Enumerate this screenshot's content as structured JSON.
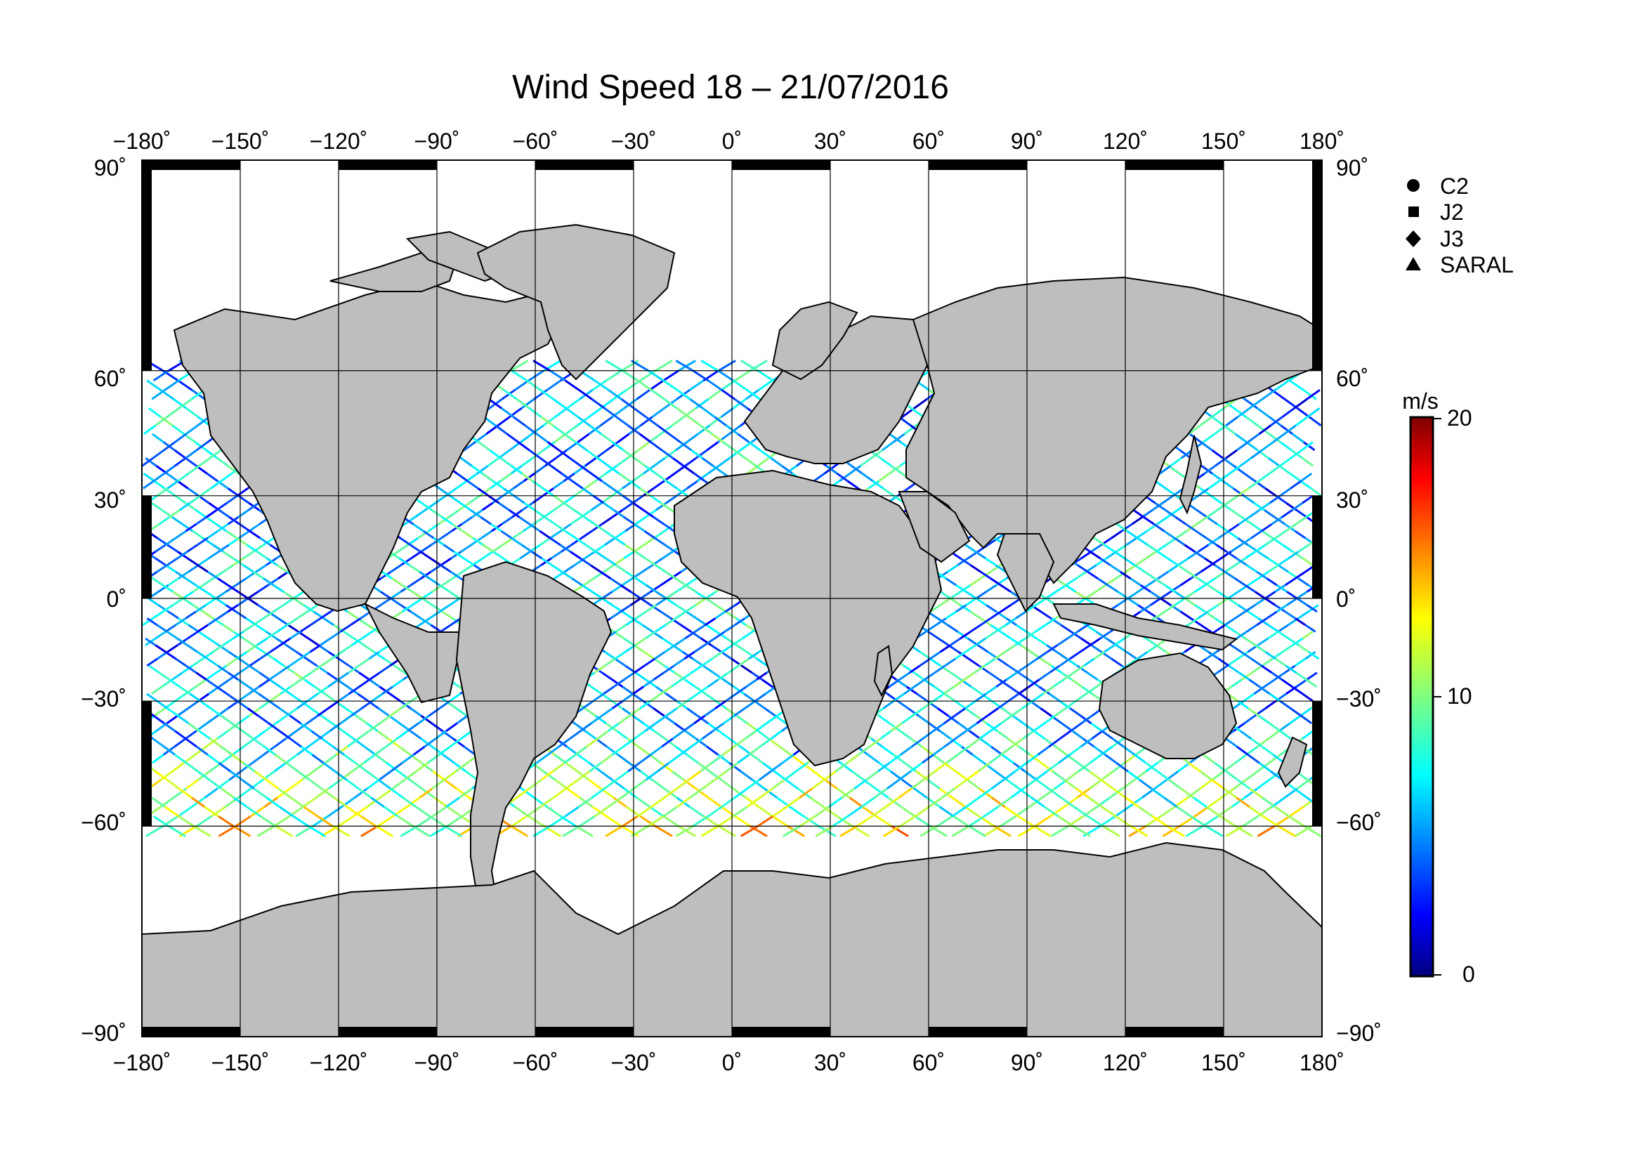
{
  "title": "Wind Speed 18 – 21/07/2016",
  "map": {
    "lon_ticks": [
      "−180˚",
      "−150˚",
      "−120˚",
      "−90˚",
      "−60˚",
      "−30˚",
      "0˚",
      "30˚",
      "60˚",
      "90˚",
      "120˚",
      "150˚",
      "180˚"
    ],
    "lat_ticks": [
      "90˚",
      "60˚",
      "30˚",
      "0˚",
      "−30˚",
      "−60˚",
      "−90˚"
    ],
    "lon_range": [
      -180,
      180
    ],
    "lat_range": [
      -90,
      90
    ],
    "gridlines": true,
    "land_color": "#bebebe",
    "coast_color": "#000000",
    "ocean_color": "#ffffff"
  },
  "legend": {
    "placement": "top-right",
    "items": [
      {
        "label": "C2",
        "symbol": "circle"
      },
      {
        "label": "J2",
        "symbol": "square"
      },
      {
        "label": "J3",
        "symbol": "diamond"
      },
      {
        "label": "SARAL",
        "symbol": "triangle"
      }
    ]
  },
  "colorbar": {
    "unit": "m/s",
    "min": 0,
    "max": 20,
    "ticks": [
      "20",
      "10",
      "0"
    ],
    "colormap": [
      "#00007f",
      "#0000ff",
      "#007fff",
      "#00ffff",
      "#7fff7f",
      "#ffff00",
      "#ff7f00",
      "#ff0000",
      "#7f0000"
    ]
  },
  "chart_data": {
    "type": "scatter",
    "title": "Wind Speed 18 – 21/07/2016",
    "xlabel": "",
    "ylabel": "",
    "xlim": [
      -180,
      180
    ],
    "ylim": [
      -90,
      90
    ],
    "value_unit": "m/s",
    "value_range": [
      0,
      20
    ],
    "series": [
      {
        "name": "C2"
      },
      {
        "name": "J2"
      },
      {
        "name": "J3"
      },
      {
        "name": "SARAL"
      }
    ]
  }
}
